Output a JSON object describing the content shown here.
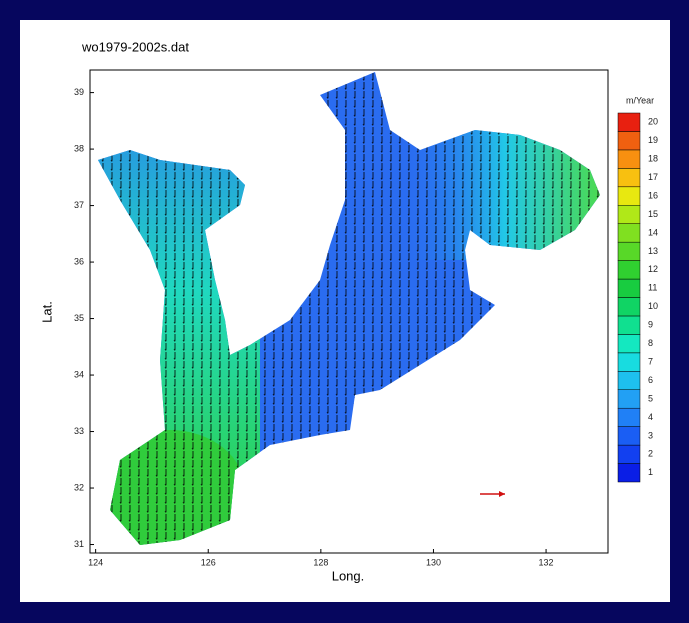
{
  "title": "wo1979-2002s.dat",
  "x_label": "Long.",
  "y_label": "Lat.",
  "xlim": [
    123.9,
    133.1
  ],
  "ylim": [
    30.85,
    39.4
  ],
  "xticks": [
    124,
    126,
    128,
    130,
    132
  ],
  "yticks": [
    31,
    32,
    33,
    34,
    35,
    36,
    37,
    38,
    39
  ],
  "colorbar": {
    "unit": "m/Year",
    "levels": [
      1,
      2,
      3,
      4,
      5,
      6,
      7,
      8,
      9,
      10,
      11,
      12,
      13,
      14,
      15,
      16,
      17,
      18,
      19,
      20
    ],
    "colors": [
      "#0a1ee6",
      "#1240f0",
      "#1a5ef4",
      "#2080f6",
      "#22a0f4",
      "#1ec0ee",
      "#18dce0",
      "#14e8c0",
      "#10e090",
      "#10d464",
      "#18cc40",
      "#30d030",
      "#58d828",
      "#80e020",
      "#b0e818",
      "#e8e810",
      "#f8c010",
      "#f89010",
      "#f06010",
      "#e82010"
    ]
  }
}
